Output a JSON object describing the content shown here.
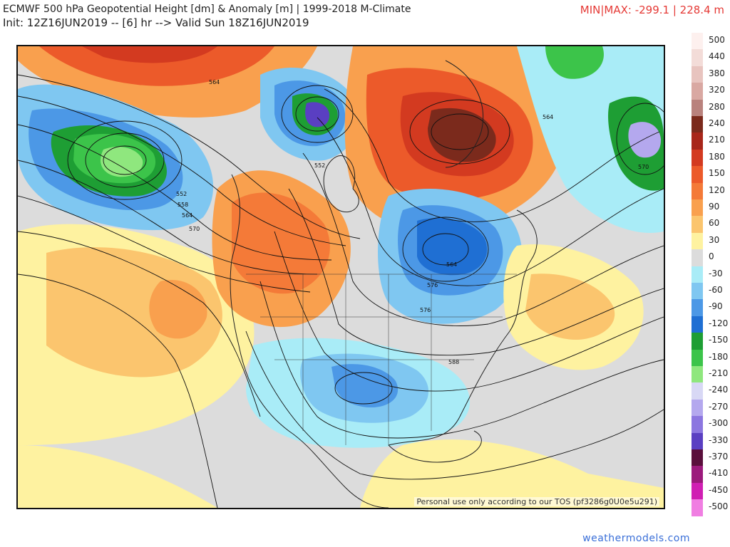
{
  "header": {
    "title_line1": "ECMWF 500 hPa Geopotential Height [dm] & Anomaly [m] | 1999-2018 M-Climate",
    "title_line2": "Init: 12Z16JUN2019 -- [6] hr --> Valid Sun 18Z16JUN2019",
    "minmax": "MIN|MAX: -299.1 | 228.4 m"
  },
  "map": {
    "disclaimer": "Personal use only according to our TOS (pf3286g0U0e5u291)",
    "contour_labels": [
      "564",
      "552",
      "558",
      "564",
      "570",
      "552",
      "564",
      "570",
      "564",
      "576",
      "576",
      "588"
    ]
  },
  "legend": {
    "entries": [
      {
        "label": "500",
        "color": "#fdf0ee"
      },
      {
        "label": "440",
        "color": "#f3dcd8"
      },
      {
        "label": "380",
        "color": "#e8c4bf"
      },
      {
        "label": "320",
        "color": "#d9a8a2"
      },
      {
        "label": "280",
        "color": "#b9827d"
      },
      {
        "label": "240",
        "color": "#7b2a1c"
      },
      {
        "label": "210",
        "color": "#a8261a"
      },
      {
        "label": "180",
        "color": "#d33a20"
      },
      {
        "label": "150",
        "color": "#ec5a2a"
      },
      {
        "label": "120",
        "color": "#f47a38"
      },
      {
        "label": "90",
        "color": "#f9a04e"
      },
      {
        "label": "60",
        "color": "#fbc56e"
      },
      {
        "label": "30",
        "color": "#fef2a0"
      },
      {
        "label": "0",
        "color": "#dcdcdc"
      },
      {
        "label": "-30",
        "color": "#a9ecf7"
      },
      {
        "label": "-60",
        "color": "#7fc7f1"
      },
      {
        "label": "-90",
        "color": "#4c98e6"
      },
      {
        "label": "-120",
        "color": "#1f6fd3"
      },
      {
        "label": "-150",
        "color": "#1e9e34"
      },
      {
        "label": "-180",
        "color": "#3cc44a"
      },
      {
        "label": "-210",
        "color": "#8fe77e"
      },
      {
        "label": "-240",
        "color": "#d8d8f5"
      },
      {
        "label": "-270",
        "color": "#b4a8ee"
      },
      {
        "label": "-300",
        "color": "#8c76e0"
      },
      {
        "label": "-330",
        "color": "#5a3fc2"
      },
      {
        "label": "-370",
        "color": "#5a0f3c"
      },
      {
        "label": "-410",
        "color": "#9c1a7c"
      },
      {
        "label": "-450",
        "color": "#d01fb3"
      },
      {
        "label": "-500",
        "color": "#f07ee2"
      }
    ]
  },
  "footer": {
    "brand": "weathermodels.com"
  }
}
